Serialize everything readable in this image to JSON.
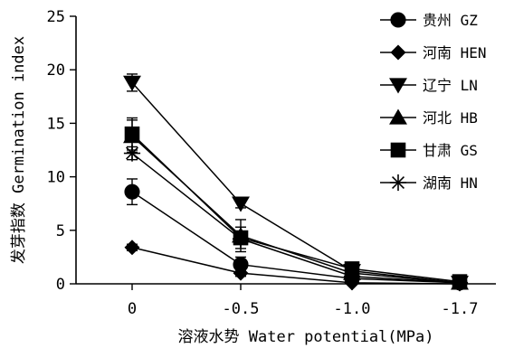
{
  "chart_data": {
    "type": "line",
    "xlabel": "溶液水势 Water potential(MPa)",
    "ylabel": "发芽指数 Germination index",
    "categories": [
      "0",
      "-0.5",
      "-1.0",
      "-1.7"
    ],
    "ylim": [
      0,
      25
    ],
    "yticks": [
      "0",
      "5",
      "10",
      "15",
      "20",
      "25"
    ],
    "legend_position": "top-right",
    "grid": false,
    "series": [
      {
        "name": "贵州 GZ",
        "marker": "circle",
        "values": [
          8.6,
          1.8,
          0.5,
          0.1
        ],
        "errors": [
          1.2,
          0.7,
          0.2,
          0.05
        ]
      },
      {
        "name": "河南 HEN",
        "marker": "diamond",
        "values": [
          3.4,
          1.0,
          0.1,
          0.0
        ],
        "errors": [
          0.3,
          0.3,
          0.05,
          0.0
        ]
      },
      {
        "name": "辽宁 LN",
        "marker": "triangle-down",
        "values": [
          18.8,
          7.5,
          1.2,
          0.1
        ],
        "errors": [
          0.8,
          0.4,
          0.3,
          0.05
        ]
      },
      {
        "name": "河北 HB",
        "marker": "triangle-up",
        "values": [
          13.8,
          4.5,
          1.0,
          0.1
        ],
        "errors": [
          1.5,
          1.5,
          0.3,
          0.05
        ]
      },
      {
        "name": "甘肃 GS",
        "marker": "square",
        "values": [
          14.0,
          4.3,
          1.4,
          0.2
        ],
        "errors": [
          1.5,
          1.0,
          0.3,
          0.05
        ]
      },
      {
        "name": "湖南 HN",
        "marker": "asterisk",
        "values": [
          12.2,
          4.2,
          0.7,
          0.1
        ],
        "errors": [
          0.6,
          0.5,
          0.2,
          0.05
        ]
      }
    ]
  }
}
